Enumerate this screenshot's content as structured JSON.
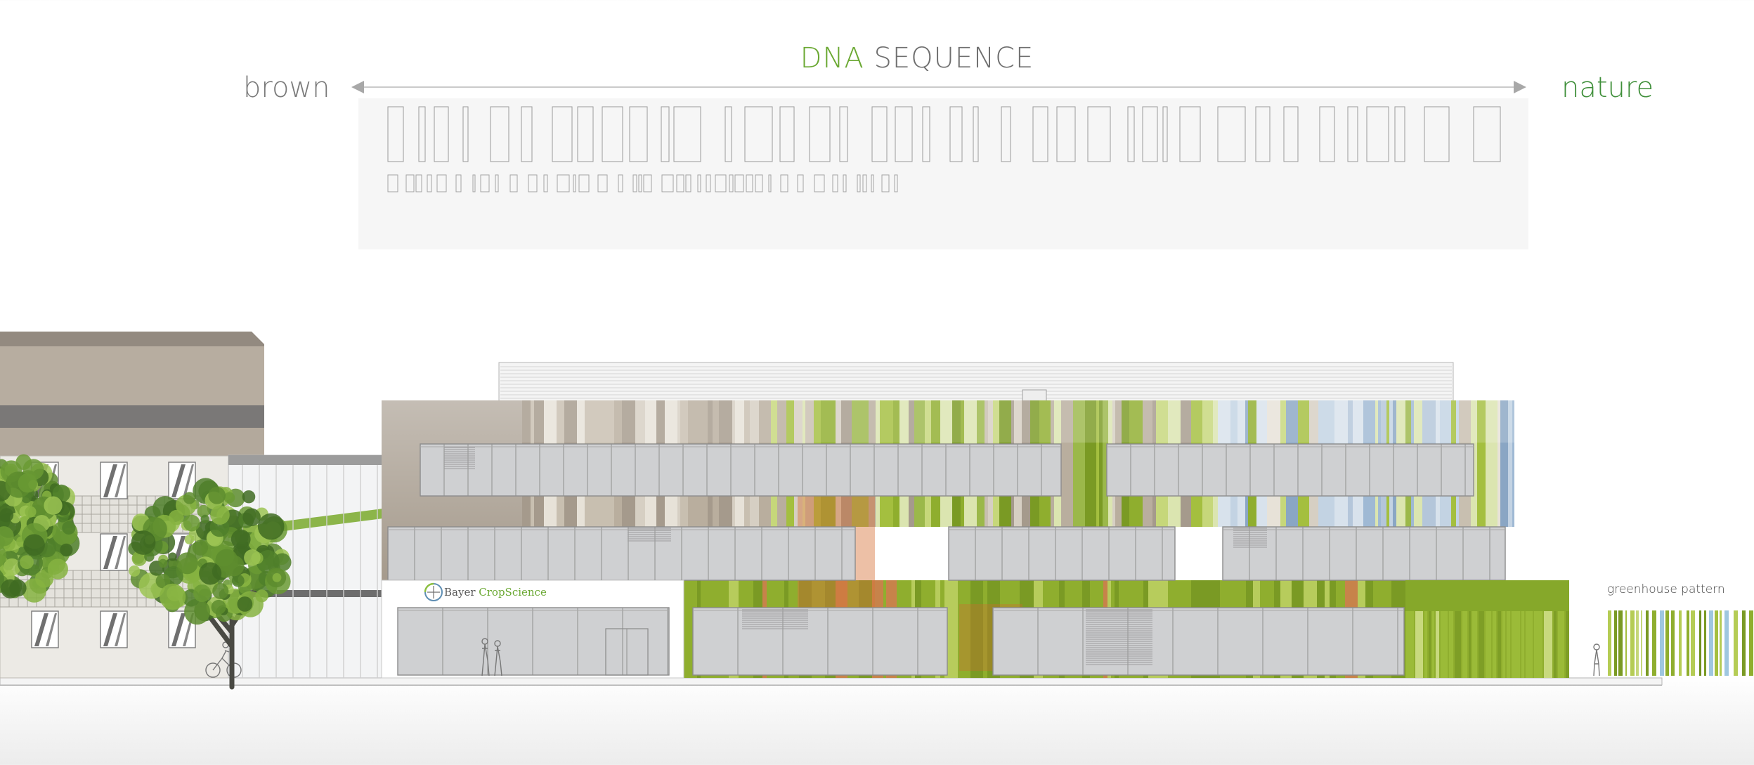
{
  "header": {
    "title_part1": "DNA",
    "title_part2": " SEQUENCE",
    "left_label": "brown",
    "right_label": "nature"
  },
  "annotations": {
    "pattern_label": "greenhouse pattern"
  },
  "signage": {
    "company_part1": "Bayer ",
    "company_part2": "CropScience",
    "logo_text": "BAYER"
  },
  "colors": {
    "title_green": "#6aa832",
    "title_gray": "#6f6f6f",
    "brown_label": "#7a7a7a",
    "nature_label": "#3f8f3a",
    "arrow": "#b0b0b0",
    "brown_panel": "#a59a8c",
    "glass": "#cfd0d2",
    "green_facade": "#8fae2e",
    "orange_accent": "#d8743a",
    "sky_blue": "#9fb9d4"
  }
}
